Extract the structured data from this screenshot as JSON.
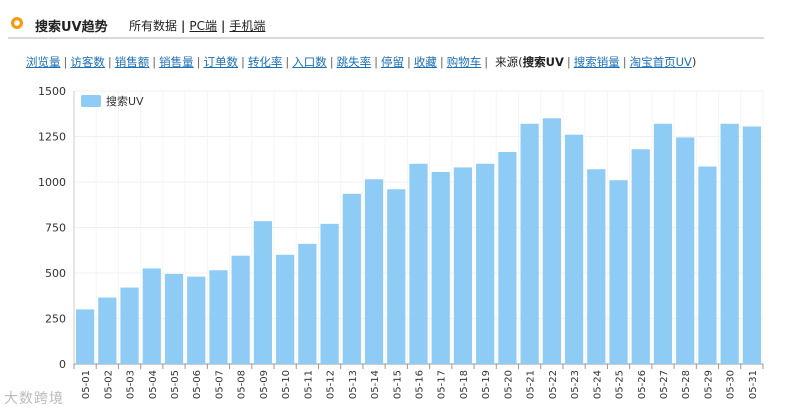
{
  "header": {
    "title": "搜索UV趋势",
    "all_data": "所有数据",
    "pc": "PC端",
    "mobile": "手机端"
  },
  "metrics": {
    "items": [
      "浏览量",
      "访客数",
      "销售额",
      "销售量",
      "订单数",
      "转化率",
      "入口数",
      "跳失率",
      "停留",
      "收藏",
      "购物车"
    ],
    "source_label": "来源(",
    "sources": [
      {
        "label": "搜索UV",
        "active": true
      },
      {
        "label": "搜索销量",
        "active": false
      },
      {
        "label": "淘宝首页UV",
        "active": false
      }
    ],
    "close_paren": ")"
  },
  "chart_data": {
    "type": "bar",
    "categories": [
      "05-01",
      "05-02",
      "05-03",
      "05-04",
      "05-05",
      "05-06",
      "05-07",
      "05-08",
      "05-09",
      "05-10",
      "05-11",
      "05-12",
      "05-13",
      "05-14",
      "05-15",
      "05-16",
      "05-17",
      "05-18",
      "05-19",
      "05-20",
      "05-21",
      "05-22",
      "05-23",
      "05-24",
      "05-25",
      "05-26",
      "05-27",
      "05-28",
      "05-29",
      "05-30",
      "05-31"
    ],
    "series": [
      {
        "name": "搜索UV",
        "values": [
          300,
          365,
          420,
          525,
          495,
          480,
          515,
          595,
          785,
          600,
          660,
          770,
          935,
          1015,
          960,
          1100,
          1055,
          1080,
          1100,
          1165,
          1320,
          1350,
          1260,
          1070,
          1010,
          1180,
          1320,
          1245,
          1085,
          1320,
          1305
        ]
      }
    ],
    "yticks": [
      0,
      250,
      500,
      750,
      1000,
      1250,
      1500
    ],
    "ylim": [
      0,
      1500
    ],
    "color": "#8ecbf5",
    "grid": true,
    "legend_position": "top-left"
  },
  "watermark": "大数跨境"
}
